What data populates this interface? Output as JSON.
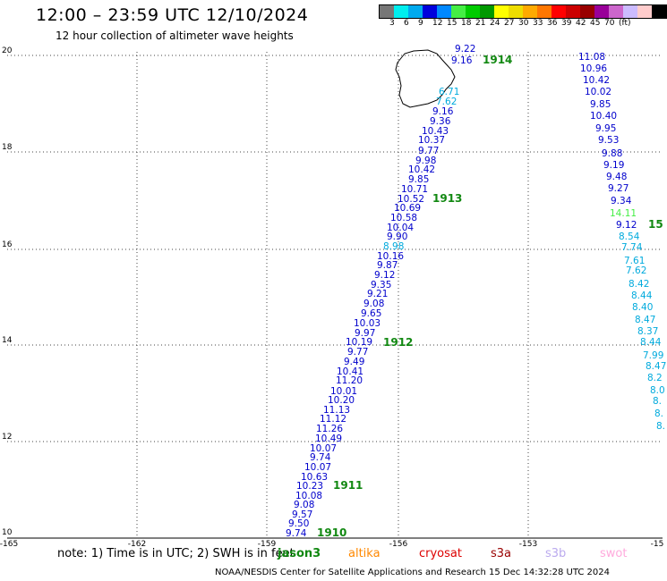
{
  "header": {
    "title": "12:00 – 23:59 UTC 12/10/2024",
    "subtitle": "12 hour collection of altimeter wave heights"
  },
  "colorbar": {
    "colors": [
      "#777777",
      "#00eeee",
      "#00aaee",
      "#0000dd",
      "#0088ff",
      "#44ee44",
      "#00cc00",
      "#009900",
      "#ffff00",
      "#eedd00",
      "#ffaa00",
      "#ff7700",
      "#ff0000",
      "#cc0000",
      "#990000",
      "#990099",
      "#cc66cc",
      "#ccbbff",
      "#ffcccc",
      "#000000"
    ],
    "labels": [
      "3",
      "6",
      "9",
      "12",
      "15",
      "18",
      "21",
      "24",
      "27",
      "30",
      "33",
      "36",
      "39",
      "42",
      "45",
      "70",
      "(ft)"
    ]
  },
  "axes": {
    "lon_ticks": [
      "-165",
      "-162",
      "-159",
      "-156",
      "-153",
      "-15"
    ],
    "lat_ticks": [
      "20",
      "18",
      "16",
      "14",
      "12",
      "10"
    ]
  },
  "passes": [
    "1914",
    "1913",
    "1912",
    "1911",
    "1910",
    "15"
  ],
  "track_left": [
    {
      "v": "9.22",
      "c": "#0000cc"
    },
    {
      "v": "9.16",
      "c": "#0000cc"
    },
    {
      "v": "6.71",
      "c": "#00aadd"
    },
    {
      "v": "7.62",
      "c": "#00aadd"
    },
    {
      "v": "9.16",
      "c": "#0000cc"
    },
    {
      "v": "9.36",
      "c": "#0000cc"
    },
    {
      "v": "10.43",
      "c": "#0000cc"
    },
    {
      "v": "10.37",
      "c": "#0000cc"
    },
    {
      "v": "9.77",
      "c": "#0000cc"
    },
    {
      "v": "9.98",
      "c": "#0000cc"
    },
    {
      "v": "10.42",
      "c": "#0000cc"
    },
    {
      "v": "9.85",
      "c": "#0000cc"
    },
    {
      "v": "10.71",
      "c": "#0000cc"
    },
    {
      "v": "10.52",
      "c": "#0000cc"
    },
    {
      "v": "10.69",
      "c": "#0000cc"
    },
    {
      "v": "10.58",
      "c": "#0000cc"
    },
    {
      "v": "10.04",
      "c": "#0000cc"
    },
    {
      "v": "9.90",
      "c": "#0000cc"
    },
    {
      "v": "8.98",
      "c": "#00aadd"
    },
    {
      "v": "10.16",
      "c": "#0000cc"
    },
    {
      "v": "9.87",
      "c": "#0000cc"
    },
    {
      "v": "9.12",
      "c": "#0000cc"
    },
    {
      "v": "9.35",
      "c": "#0000cc"
    },
    {
      "v": "9.21",
      "c": "#0000cc"
    },
    {
      "v": "9.08",
      "c": "#0000cc"
    },
    {
      "v": "9.65",
      "c": "#0000cc"
    },
    {
      "v": "10.03",
      "c": "#0000cc"
    },
    {
      "v": "9.97",
      "c": "#0000cc"
    },
    {
      "v": "10.19",
      "c": "#0000cc"
    },
    {
      "v": "9.77",
      "c": "#0000cc"
    },
    {
      "v": "9.49",
      "c": "#0000cc"
    },
    {
      "v": "10.41",
      "c": "#0000cc"
    },
    {
      "v": "11.20",
      "c": "#0000cc"
    },
    {
      "v": "10.01",
      "c": "#0000cc"
    },
    {
      "v": "10.20",
      "c": "#0000cc"
    },
    {
      "v": "11.13",
      "c": "#0000cc"
    },
    {
      "v": "11.12",
      "c": "#0000cc"
    },
    {
      "v": "11.26",
      "c": "#0000cc"
    },
    {
      "v": "10.49",
      "c": "#0000cc"
    },
    {
      "v": "10.07",
      "c": "#0000cc"
    },
    {
      "v": "9.74",
      "c": "#0000cc"
    },
    {
      "v": "10.07",
      "c": "#0000cc"
    },
    {
      "v": "10.63",
      "c": "#0000cc"
    },
    {
      "v": "10.23",
      "c": "#0000cc"
    },
    {
      "v": "10.08",
      "c": "#0000cc"
    },
    {
      "v": "9.08",
      "c": "#0000cc"
    },
    {
      "v": "9.57",
      "c": "#0000cc"
    },
    {
      "v": "9.50",
      "c": "#0000cc"
    },
    {
      "v": "9.74",
      "c": "#0000cc"
    }
  ],
  "track_right": [
    {
      "v": "11.08",
      "c": "#0000cc"
    },
    {
      "v": "10.96",
      "c": "#0000cc"
    },
    {
      "v": "10.42",
      "c": "#0000cc"
    },
    {
      "v": "10.02",
      "c": "#0000cc"
    },
    {
      "v": "9.85",
      "c": "#0000cc"
    },
    {
      "v": "10.40",
      "c": "#0000cc"
    },
    {
      "v": "9.95",
      "c": "#0000cc"
    },
    {
      "v": "9.53",
      "c": "#0000cc"
    },
    {
      "v": "9.88",
      "c": "#0000cc"
    },
    {
      "v": "9.19",
      "c": "#0000cc"
    },
    {
      "v": "9.48",
      "c": "#0000cc"
    },
    {
      "v": "9.27",
      "c": "#0000cc"
    },
    {
      "v": "9.34",
      "c": "#0000cc"
    },
    {
      "v": "14.11",
      "c": "#44ee44"
    },
    {
      "v": "9.12",
      "c": "#0000cc"
    },
    {
      "v": "8.54",
      "c": "#00aadd"
    },
    {
      "v": "7.74",
      "c": "#00aadd"
    },
    {
      "v": "7.61",
      "c": "#00aadd"
    },
    {
      "v": "7.62",
      "c": "#00aadd"
    },
    {
      "v": "8.42",
      "c": "#00aadd"
    },
    {
      "v": "8.44",
      "c": "#00aadd"
    },
    {
      "v": "8.40",
      "c": "#00aadd"
    },
    {
      "v": "8.47",
      "c": "#00aadd"
    },
    {
      "v": "8.37",
      "c": "#00aadd"
    },
    {
      "v": "8.44",
      "c": "#00aadd"
    },
    {
      "v": "7.99",
      "c": "#00aadd"
    },
    {
      "v": "8.47",
      "c": "#00aadd"
    },
    {
      "v": "8.2",
      "c": "#00aadd"
    },
    {
      "v": "8.0",
      "c": "#00aadd"
    },
    {
      "v": "8.",
      "c": "#00aadd"
    },
    {
      "v": "8.",
      "c": "#00aadd"
    },
    {
      "v": "8.",
      "c": "#00aadd"
    }
  ],
  "legend": {
    "note": "note: 1) Time is in UTC; 2) SWH is in feet",
    "sats": [
      {
        "name": "jason3",
        "color": "#118811"
      },
      {
        "name": "altika",
        "color": "#ff8800"
      },
      {
        "name": "cryosat",
        "color": "#dd0000"
      },
      {
        "name": "s3a",
        "color": "#990000"
      },
      {
        "name": "s3b",
        "color": "#bbaaee"
      },
      {
        "name": "swot",
        "color": "#ffaadd"
      }
    ]
  },
  "footer": "NOAA/NESDIS Center for Satellite Applications and Research   15 Dec 14:32:28 UTC 2024"
}
